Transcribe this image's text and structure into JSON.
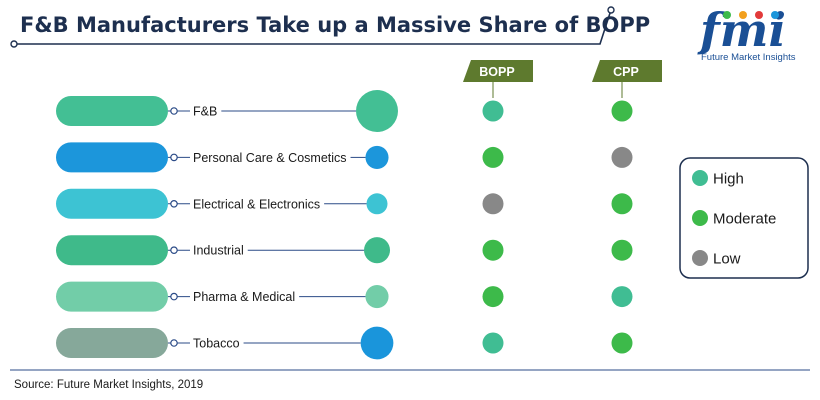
{
  "title": "F&B Manufacturers Take up a Massive Share of BOPP",
  "logo": {
    "mark": "fmi",
    "subtitle": "Future Market Insights"
  },
  "source": "Source: Future Market Insights, 2019",
  "colors": {
    "high": "#40bd93",
    "moderate": "#3dba4a",
    "low": "#888888",
    "header": "#5e7a2e",
    "title": "#1d2f4f",
    "connector": "#2b4b87"
  },
  "chart_data": {
    "type": "table",
    "columns": [
      "BOPP",
      "CPP"
    ],
    "legend": [
      {
        "key": "high",
        "label": "High"
      },
      {
        "key": "moderate",
        "label": "Moderate"
      },
      {
        "key": "low",
        "label": "Low"
      }
    ],
    "rows": [
      {
        "label": "F&B",
        "pill_color": "#43bf94",
        "end_color": "#43bf94",
        "end_size": 1.0,
        "BOPP": "high",
        "CPP": "moderate"
      },
      {
        "label": "Personal Care & Cosmetics",
        "pill_color": "#1c96db",
        "end_color": "#1c96db",
        "end_size": 0.55,
        "BOPP": "moderate",
        "CPP": "low"
      },
      {
        "label": "Electrical & Electronics",
        "pill_color": "#3dc3d3",
        "end_color": "#3dc3d3",
        "end_size": 0.5,
        "BOPP": "low",
        "CPP": "moderate"
      },
      {
        "label": "Industrial",
        "pill_color": "#3fba8a",
        "end_color": "#3fba8a",
        "end_size": 0.62,
        "BOPP": "moderate",
        "CPP": "moderate"
      },
      {
        "label": "Pharma & Medical",
        "pill_color": "#72cda8",
        "end_color": "#72cda8",
        "end_size": 0.55,
        "BOPP": "moderate",
        "CPP": "high"
      },
      {
        "label": "Tobacco",
        "pill_color": "#86a89a",
        "end_color": "#1a95db",
        "end_size": 0.78,
        "BOPP": "high",
        "CPP": "moderate"
      }
    ]
  }
}
